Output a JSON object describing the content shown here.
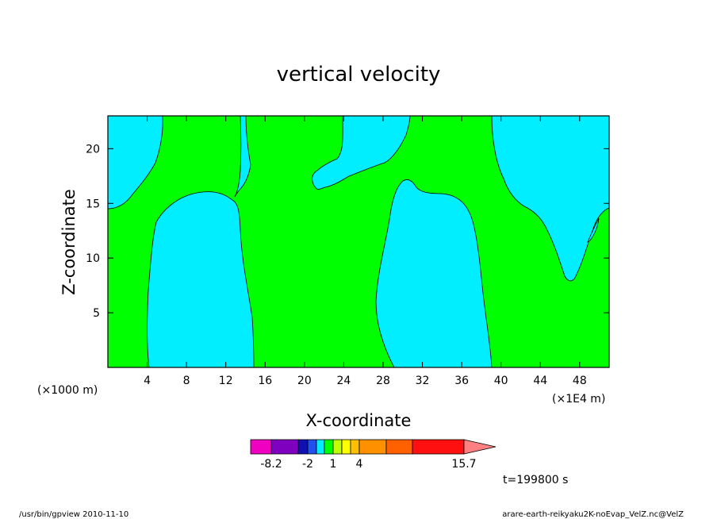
{
  "chart_data": {
    "type": "heatmap",
    "title": "vertical velocity",
    "xlabel": "X-coordinate",
    "ylabel": "Z-coordinate",
    "x_scale_note": "(×1E4 m)",
    "y_scale_note": "(×1000 m)",
    "xlim": [
      0,
      51
    ],
    "ylim": [
      0,
      23
    ],
    "x_ticks": [
      4,
      8,
      12,
      16,
      20,
      24,
      28,
      32,
      36,
      40,
      44,
      48
    ],
    "y_ticks": [
      5,
      10,
      15,
      20
    ],
    "levels": {
      "upward_region_color": "#00ff00",
      "downward_region_color": "#00eeff"
    },
    "colorbar": {
      "colors": [
        "#f000c0",
        "#8000c0",
        "#1010b0",
        "#2050f0",
        "#00eeff",
        "#00ff00",
        "#c0ff00",
        "#ffff00",
        "#ffc000",
        "#ff9000",
        "#ff6000",
        "#ff1010",
        "#ff8080"
      ],
      "tick_labels": [
        "-8.2",
        "-2",
        "1",
        "4",
        "15.7"
      ]
    },
    "time_label": "t=199800 s"
  },
  "footer": {
    "left": "/usr/bin/gpview   2010-11-10",
    "right": "arare-earth-reikyaku2K-noEvap_VelZ.nc@VelZ"
  }
}
